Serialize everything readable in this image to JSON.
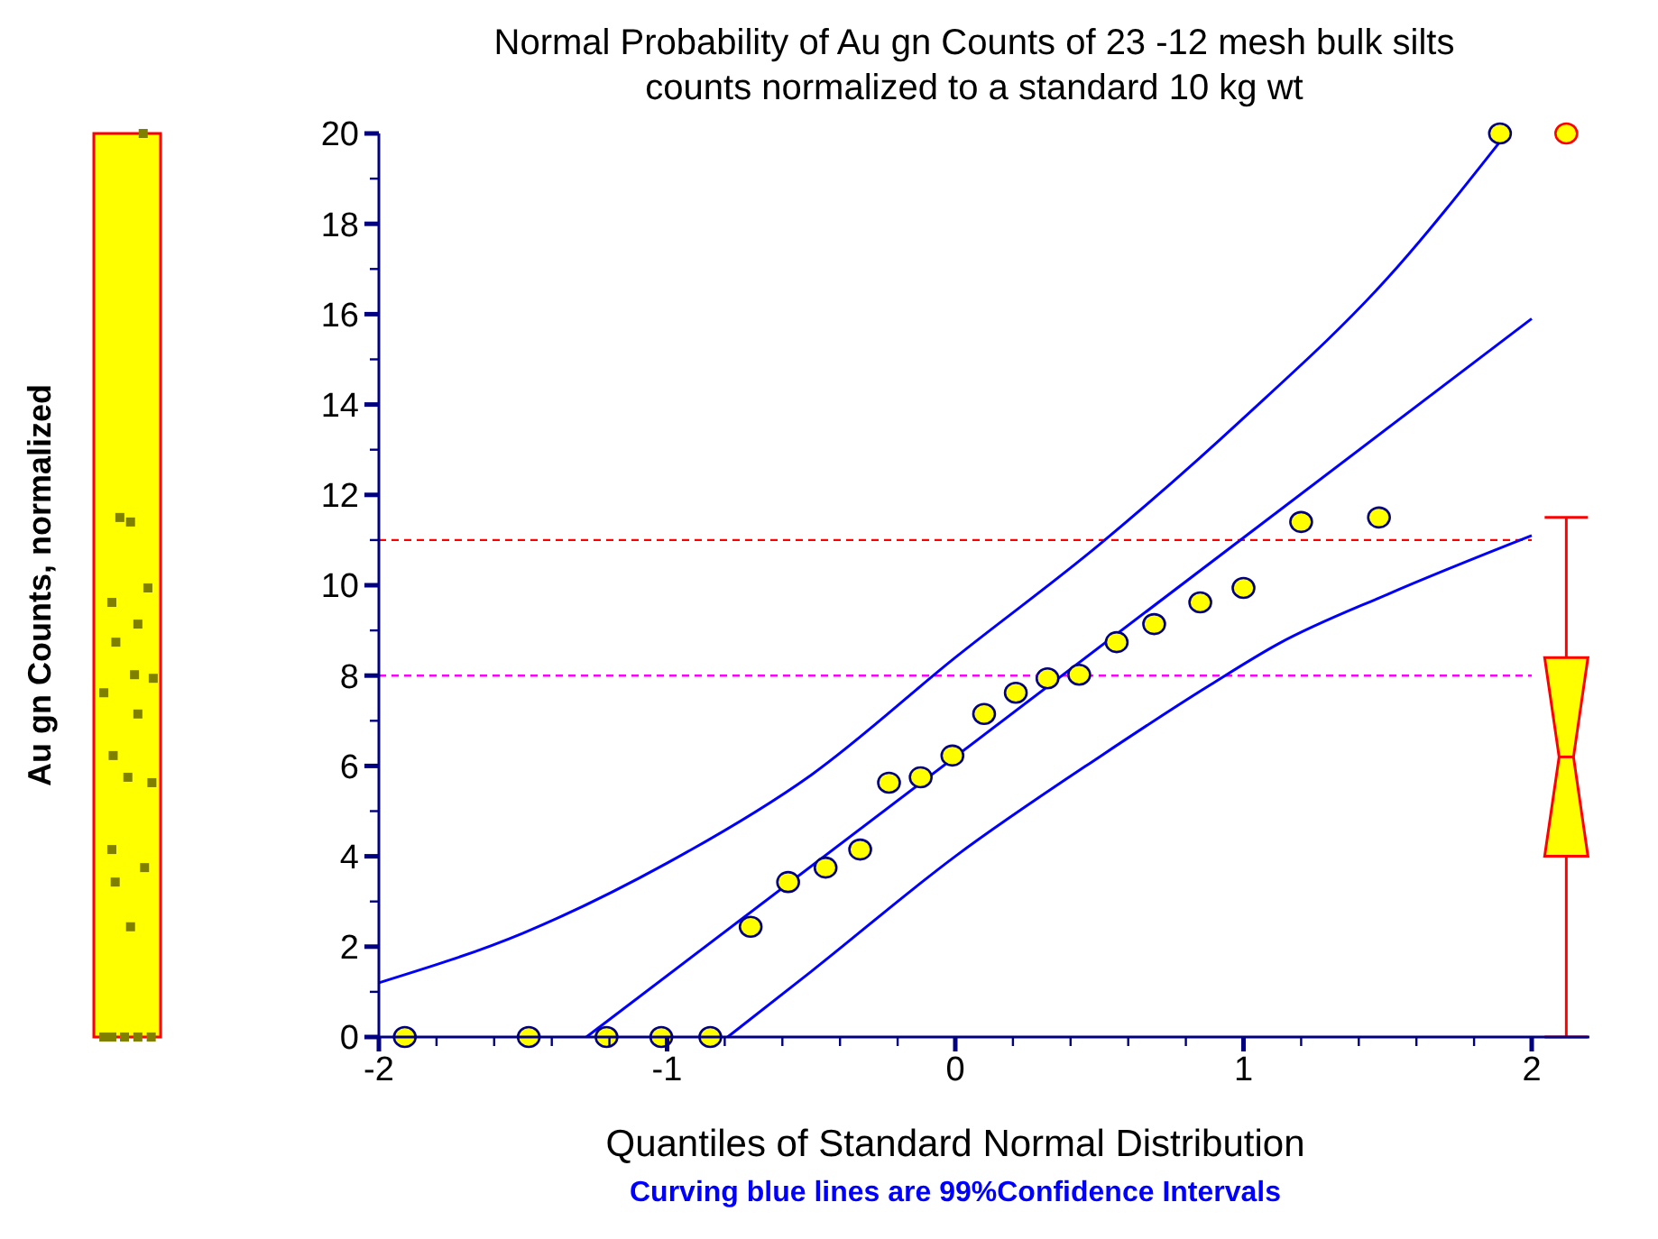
{
  "chart_data": {
    "type": "scatter",
    "title": "Normal Probability of Au gn Counts of 23  -12 mesh bulk silts",
    "subtitle": "counts normalized to a standard 10 kg wt",
    "xlabel": "Quantiles of Standard Normal Distribution",
    "annotations": [
      "Curving blue lines are 99%Confidence Intervals",
      "Au gn Counts, normalized"
    ],
    "xlim": [
      -2,
      2.2
    ],
    "ylim": [
      0,
      20
    ],
    "xticks": [
      -2,
      {
        "value": -1.8,
        "label": null
      },
      {
        "value": -1.6,
        "label": null
      },
      {
        "value": -1.4,
        "label": null
      },
      {
        "value": -1.2,
        "label": null
      },
      -1,
      {
        "value": -0.8,
        "label": null
      },
      {
        "value": -0.6,
        "label": null
      },
      {
        "value": -0.4,
        "label": null
      },
      {
        "value": -0.2,
        "label": null
      },
      0,
      {
        "value": 0.2,
        "label": null
      },
      {
        "value": 0.4,
        "label": null
      },
      {
        "value": 0.6,
        "label": null
      },
      {
        "value": 0.8,
        "label": null
      },
      1,
      {
        "value": 1.2,
        "label": null
      },
      {
        "value": 1.4,
        "label": null
      },
      {
        "value": 1.6,
        "label": null
      },
      {
        "value": 1.8,
        "label": null
      },
      2
    ],
    "yticks": [
      0,
      {
        "value": 1,
        "label": null
      },
      2,
      {
        "value": 3,
        "label": null
      },
      4,
      {
        "value": 5,
        "label": null
      },
      6,
      {
        "value": 7,
        "label": null
      },
      8,
      {
        "value": 9,
        "label": null
      },
      10,
      {
        "value": 11,
        "label": null
      },
      12,
      {
        "value": 13,
        "label": null
      },
      14,
      {
        "value": 15,
        "label": null
      },
      16,
      {
        "value": 17,
        "label": null
      },
      18,
      {
        "value": 19,
        "label": null
      },
      20
    ],
    "ref_lines": [
      {
        "axis": "y",
        "value": 11,
        "color": "#ff0000",
        "line_style": "dashed"
      },
      {
        "axis": "y",
        "value": 8,
        "color": "#ff00ff",
        "line_style": "dashed"
      }
    ],
    "series": [
      {
        "type": "line",
        "color": "#0000ff",
        "x": [
          -1.28,
          2
        ],
        "values": [
          0,
          15.9
        ]
      },
      {
        "type": "line",
        "color": "#0000ff",
        "x": [
          -2,
          -1.5,
          -1,
          -0.5,
          0,
          0.5,
          1,
          1.5,
          1.9
        ],
        "values": [
          1.2,
          2.3,
          3.85,
          5.8,
          8.4,
          10.9,
          13.7,
          16.8,
          19.9
        ]
      },
      {
        "type": "line",
        "color": "#0000ff",
        "x": [
          -0.79,
          -0.5,
          0,
          0.5,
          0.886,
          1.12,
          1.5,
          2
        ],
        "values": [
          0,
          1.45,
          4.0,
          6.2,
          7.8,
          8.7,
          9.8,
          11.1
        ]
      },
      {
        "marker": "circle",
        "color": "#ffff00",
        "x": [
          -1.91,
          -1.48,
          -1.21,
          -1.02,
          -0.85,
          -0.71,
          -0.58,
          -0.45,
          -0.33,
          -0.23,
          -0.12,
          -0.01,
          0.1,
          0.21,
          0.32,
          0.43,
          0.56,
          0.69,
          0.85,
          1.0,
          1.2,
          1.47,
          1.89
        ],
        "values": [
          0,
          0,
          0,
          0,
          0,
          2.44,
          3.43,
          3.75,
          4.15,
          5.63,
          5.75,
          6.23,
          7.15,
          7.62,
          7.94,
          8.02,
          8.74,
          9.14,
          9.62,
          9.94,
          11.4,
          11.5,
          20
        ]
      },
      {
        "type": "box",
        "color": "#ffff00",
        "x": [
          2.12
        ],
        "boxes": [
          {
            "low": 0,
            "q1": 4.0,
            "median": 6.2,
            "q3": 8.4,
            "high": 11.5,
            "outliers": [
              20
            ]
          }
        ]
      }
    ]
  }
}
